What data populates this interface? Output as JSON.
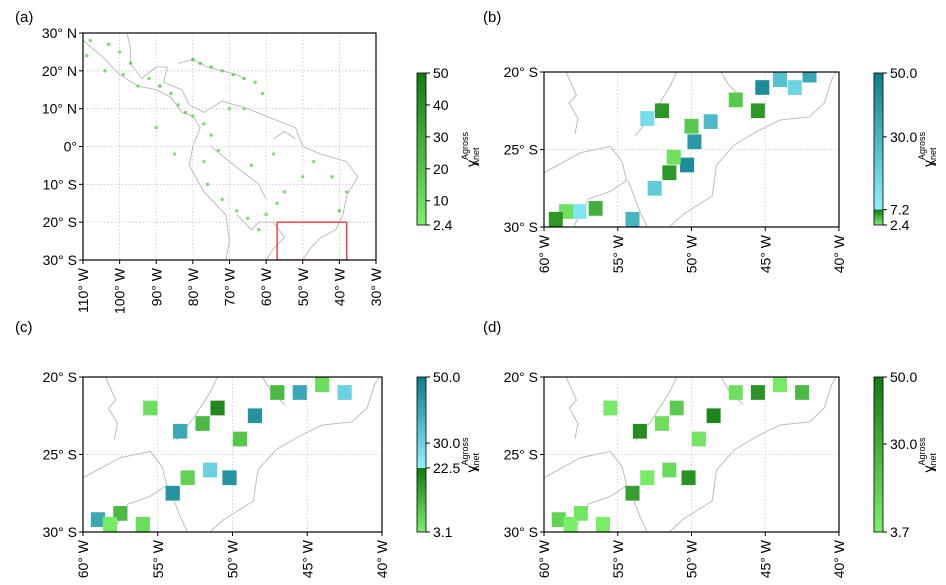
{
  "chart_data": [
    {
      "panel": "(a)",
      "type": "map-scatter",
      "lon_range": [
        -110,
        -30
      ],
      "lat_range": [
        -30,
        30
      ],
      "x_ticks": [
        "110° W",
        "100° W",
        "90° W",
        "80° W",
        "70° W",
        "60° W",
        "50° W",
        "40° W",
        "30° W"
      ],
      "y_ticks": [
        "30° N",
        "20° N",
        "10° N",
        "0°",
        "10° S",
        "20° S",
        "30° S"
      ],
      "grid": true,
      "highlight_box": {
        "lon": [
          -57,
          -38
        ],
        "lat": [
          -30,
          -20
        ],
        "color": "#e8393b"
      },
      "colorbar": {
        "ticks": [
          "50",
          "40",
          "30",
          "20",
          "10",
          "2.4"
        ],
        "min": 2.4,
        "max": 50,
        "label_main": "γ",
        "label_sup": "Agross",
        "label_sub": "Anet"
      },
      "points": [
        [
          -108,
          28,
          10
        ],
        [
          -103,
          27,
          12
        ],
        [
          -100,
          25,
          8
        ],
        [
          -97,
          22,
          15
        ],
        [
          -92,
          18,
          10
        ],
        [
          -89,
          16,
          20
        ],
        [
          -86,
          14,
          12
        ],
        [
          -84,
          11,
          10
        ],
        [
          -82,
          9,
          14
        ],
        [
          -80,
          8,
          8
        ],
        [
          -77,
          6,
          10
        ],
        [
          -75,
          3,
          12
        ],
        [
          -73,
          -1,
          10
        ],
        [
          -77,
          -4,
          8
        ],
        [
          -76,
          -10,
          12
        ],
        [
          -72,
          -14,
          10
        ],
        [
          -68,
          -17,
          8
        ],
        [
          -65,
          -19,
          10
        ],
        [
          -62,
          -22,
          12
        ],
        [
          -60,
          -18,
          8
        ],
        [
          -57,
          -15,
          10
        ],
        [
          -55,
          -12,
          12
        ],
        [
          -50,
          -8,
          10
        ],
        [
          -47,
          -4,
          8
        ],
        [
          -42,
          -8,
          12
        ],
        [
          -38,
          -12,
          10
        ],
        [
          -40,
          -17,
          14
        ],
        [
          -80,
          23,
          20
        ],
        [
          -78,
          22,
          18
        ],
        [
          -75,
          21,
          16
        ],
        [
          -72,
          20,
          14
        ],
        [
          -69,
          19,
          12
        ],
        [
          -66,
          18,
          16
        ],
        [
          -63,
          17,
          10
        ],
        [
          -61,
          14,
          12
        ],
        [
          -66,
          10,
          10
        ],
        [
          -70,
          10,
          8
        ],
        [
          -90,
          5,
          10
        ],
        [
          -95,
          16,
          8
        ],
        [
          -99,
          19,
          10
        ],
        [
          -104,
          20,
          12
        ],
        [
          -109,
          24,
          8
        ],
        [
          -85,
          -2,
          8
        ],
        [
          -64,
          -5,
          10
        ],
        [
          -58,
          -2,
          8
        ]
      ]
    },
    {
      "panel": "(b)",
      "type": "heatmap",
      "lon_range": [
        -60,
        -40
      ],
      "lat_range": [
        -30,
        -20
      ],
      "x_ticks": [
        "60° W",
        "55° W",
        "50° W",
        "45° W",
        "40° W"
      ],
      "y_ticks": [
        "20° S",
        "25° S",
        "30° S"
      ],
      "grid": true,
      "colorbar": {
        "ticks": [
          "50.0",
          "30.0",
          "7.2",
          "2.4"
        ],
        "min": 2.4,
        "split": 7.2,
        "max": 50,
        "label_main": "γ",
        "label_sup": "Agross",
        "label_sub": "Anet"
      },
      "cells": [
        [
          -54.0,
          -29.5,
          30
        ],
        [
          -57.6,
          -29.0,
          12
        ],
        [
          -56.5,
          -28.8,
          5
        ],
        [
          -52.5,
          -27.5,
          22
        ],
        [
          -51.5,
          -26.5,
          6
        ],
        [
          -50.3,
          -26.0,
          44
        ],
        [
          -51.2,
          -25.5,
          3
        ],
        [
          -49.8,
          -24.5,
          40
        ],
        [
          -48.7,
          -23.2,
          28
        ],
        [
          -47.0,
          -21.8,
          4
        ],
        [
          -45.2,
          -21.0,
          44
        ],
        [
          -44.0,
          -20.5,
          25
        ],
        [
          -43.0,
          -21.0,
          18
        ],
        [
          -42.0,
          -20.2,
          35
        ],
        [
          -45.5,
          -22.5,
          6
        ],
        [
          -53.0,
          -23.0,
          15
        ],
        [
          -52.0,
          -22.5,
          6
        ],
        [
          -50.0,
          -23.5,
          4
        ],
        [
          -58.5,
          -29.0,
          3
        ],
        [
          -59.2,
          -29.5,
          6
        ]
      ]
    },
    {
      "panel": "(c)",
      "type": "heatmap",
      "lon_range": [
        -60,
        -40
      ],
      "lat_range": [
        -30,
        -20
      ],
      "x_ticks": [
        "60° W",
        "55° W",
        "50° W",
        "45° W",
        "40° W"
      ],
      "y_ticks": [
        "20° S",
        "25° S",
        "30° S"
      ],
      "grid": true,
      "colorbar": {
        "ticks": [
          "50.0",
          "30.0",
          "22.5",
          "3.1"
        ],
        "min": 3.1,
        "split": 22.5,
        "max": 50,
        "label_main": "γ",
        "label_sup": "Agross",
        "label_sub": "Anet"
      },
      "cells": [
        [
          -59.0,
          -29.2,
          40
        ],
        [
          -57.5,
          -28.8,
          12
        ],
        [
          -56.0,
          -29.5,
          6
        ],
        [
          -54.0,
          -27.5,
          45
        ],
        [
          -53.0,
          -26.5,
          8
        ],
        [
          -51.5,
          -26.0,
          30
        ],
        [
          -50.2,
          -26.5,
          45
        ],
        [
          -49.5,
          -24.0,
          10
        ],
        [
          -48.5,
          -22.5,
          45
        ],
        [
          -47.0,
          -21.0,
          12
        ],
        [
          -45.5,
          -21.0,
          40
        ],
        [
          -44.0,
          -20.5,
          6
        ],
        [
          -42.5,
          -21.0,
          30
        ],
        [
          -52.0,
          -23.0,
          12
        ],
        [
          -53.5,
          -23.5,
          40
        ],
        [
          -55.5,
          -22.0,
          6
        ],
        [
          -51.0,
          -22.0,
          20
        ],
        [
          -58.2,
          -29.5,
          4
        ]
      ]
    },
    {
      "panel": "(d)",
      "type": "heatmap",
      "lon_range": [
        -60,
        -40
      ],
      "lat_range": [
        -30,
        -20
      ],
      "x_ticks": [
        "60° W",
        "55° W",
        "50° W",
        "45° W",
        "40° W"
      ],
      "y_ticks": [
        "20° S",
        "25° S",
        "30° S"
      ],
      "grid": true,
      "colorbar": {
        "ticks": [
          "50.0",
          "30.0",
          "3.7"
        ],
        "min": 3.7,
        "max": 50,
        "label_main": "γ",
        "label_sup": "Agross",
        "label_sub": "Anet"
      },
      "cells": [
        [
          -59.0,
          -29.2,
          15
        ],
        [
          -57.5,
          -28.8,
          8
        ],
        [
          -56.0,
          -29.5,
          5
        ],
        [
          -54.0,
          -27.5,
          35
        ],
        [
          -53.0,
          -26.5,
          6
        ],
        [
          -51.5,
          -26.0,
          12
        ],
        [
          -50.2,
          -26.5,
          40
        ],
        [
          -49.5,
          -24.0,
          8
        ],
        [
          -48.5,
          -22.5,
          45
        ],
        [
          -47.0,
          -21.0,
          10
        ],
        [
          -45.5,
          -21.0,
          40
        ],
        [
          -44.0,
          -20.5,
          6
        ],
        [
          -42.5,
          -21.0,
          25
        ],
        [
          -52.0,
          -23.0,
          10
        ],
        [
          -53.5,
          -23.5,
          42
        ],
        [
          -55.5,
          -22.0,
          6
        ],
        [
          -51.0,
          -22.0,
          18
        ],
        [
          -58.2,
          -29.5,
          4
        ]
      ]
    }
  ]
}
